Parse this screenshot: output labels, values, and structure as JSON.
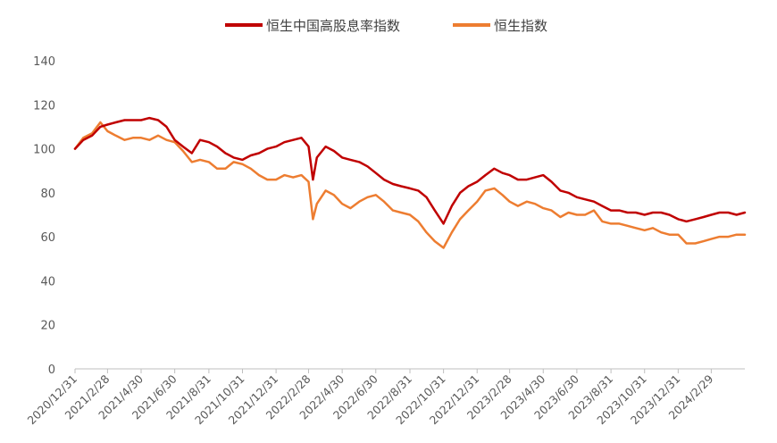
{
  "chart_data": {
    "type": "line",
    "title": "",
    "xlabel": "",
    "ylabel": "",
    "ylim": [
      0,
      140
    ],
    "yticks": [
      0,
      20,
      40,
      60,
      80,
      100,
      120,
      140
    ],
    "grid": false,
    "legend_position": "top",
    "x_tick_labels": [
      "2020/12/31",
      "2021/2/28",
      "2021/4/30",
      "2021/6/30",
      "2021/8/31",
      "2021/10/31",
      "2021/12/31",
      "2022/2/28",
      "2022/4/30",
      "2022/6/30",
      "2022/8/31",
      "2022/10/31",
      "2022/12/31",
      "2023/2/28",
      "2023/4/30",
      "2023/6/30",
      "2023/8/31",
      "2023/10/31",
      "2023/12/31",
      "2024/2/29"
    ],
    "series": [
      {
        "name": "恒生中国高股息率指数",
        "color": "#C00000",
        "points": [
          [
            "2020/12/31",
            100
          ],
          [
            "2021/1/15",
            104
          ],
          [
            "2021/1/31",
            106
          ],
          [
            "2021/2/15",
            110
          ],
          [
            "2021/2/28",
            111
          ],
          [
            "2021/3/15",
            112
          ],
          [
            "2021/3/31",
            113
          ],
          [
            "2021/4/15",
            113
          ],
          [
            "2021/4/30",
            113
          ],
          [
            "2021/5/15",
            114
          ],
          [
            "2021/5/31",
            113
          ],
          [
            "2021/6/15",
            110
          ],
          [
            "2021/6/30",
            104
          ],
          [
            "2021/7/15",
            101
          ],
          [
            "2021/7/31",
            98
          ],
          [
            "2021/8/15",
            104
          ],
          [
            "2021/8/31",
            103
          ],
          [
            "2021/9/15",
            101
          ],
          [
            "2021/9/30",
            98
          ],
          [
            "2021/10/15",
            96
          ],
          [
            "2021/10/31",
            95
          ],
          [
            "2021/11/15",
            97
          ],
          [
            "2021/11/30",
            98
          ],
          [
            "2021/12/15",
            100
          ],
          [
            "2021/12/31",
            101
          ],
          [
            "2022/1/15",
            103
          ],
          [
            "2022/1/31",
            104
          ],
          [
            "2022/2/15",
            105
          ],
          [
            "2022/2/28",
            101
          ],
          [
            "2022/3/8",
            86
          ],
          [
            "2022/3/15",
            96
          ],
          [
            "2022/3/31",
            101
          ],
          [
            "2022/4/15",
            99
          ],
          [
            "2022/4/30",
            96
          ],
          [
            "2022/5/15",
            95
          ],
          [
            "2022/5/31",
            94
          ],
          [
            "2022/6/15",
            92
          ],
          [
            "2022/6/30",
            89
          ],
          [
            "2022/7/15",
            86
          ],
          [
            "2022/7/31",
            84
          ],
          [
            "2022/8/15",
            83
          ],
          [
            "2022/8/31",
            82
          ],
          [
            "2022/9/15",
            81
          ],
          [
            "2022/9/30",
            78
          ],
          [
            "2022/10/15",
            72
          ],
          [
            "2022/10/31",
            66
          ],
          [
            "2022/11/15",
            74
          ],
          [
            "2022/11/30",
            80
          ],
          [
            "2022/12/15",
            83
          ],
          [
            "2022/12/31",
            85
          ],
          [
            "2023/1/15",
            88
          ],
          [
            "2023/1/31",
            91
          ],
          [
            "2023/2/15",
            89
          ],
          [
            "2023/2/28",
            88
          ],
          [
            "2023/3/15",
            86
          ],
          [
            "2023/3/31",
            86
          ],
          [
            "2023/4/15",
            87
          ],
          [
            "2023/4/30",
            88
          ],
          [
            "2023/5/15",
            85
          ],
          [
            "2023/5/31",
            81
          ],
          [
            "2023/6/15",
            80
          ],
          [
            "2023/6/30",
            78
          ],
          [
            "2023/7/15",
            77
          ],
          [
            "2023/7/31",
            76
          ],
          [
            "2023/8/15",
            74
          ],
          [
            "2023/8/31",
            72
          ],
          [
            "2023/9/15",
            72
          ],
          [
            "2023/9/30",
            71
          ],
          [
            "2023/10/15",
            71
          ],
          [
            "2023/10/31",
            70
          ],
          [
            "2023/11/15",
            71
          ],
          [
            "2023/11/30",
            71
          ],
          [
            "2023/12/15",
            70
          ],
          [
            "2023/12/31",
            68
          ],
          [
            "2024/1/15",
            67
          ],
          [
            "2024/1/31",
            68
          ],
          [
            "2024/2/15",
            69
          ],
          [
            "2024/2/29",
            70
          ],
          [
            "2024/3/15",
            71
          ],
          [
            "2024/3/31",
            71
          ],
          [
            "2024/4/15",
            70
          ],
          [
            "2024/4/30",
            71
          ]
        ]
      },
      {
        "name": "恒生指数",
        "color": "#ED7D31",
        "points": [
          [
            "2020/12/31",
            100
          ],
          [
            "2021/1/15",
            105
          ],
          [
            "2021/1/31",
            107
          ],
          [
            "2021/2/15",
            112
          ],
          [
            "2021/2/28",
            108
          ],
          [
            "2021/3/15",
            106
          ],
          [
            "2021/3/31",
            104
          ],
          [
            "2021/4/15",
            105
          ],
          [
            "2021/4/30",
            105
          ],
          [
            "2021/5/15",
            104
          ],
          [
            "2021/5/31",
            106
          ],
          [
            "2021/6/15",
            104
          ],
          [
            "2021/6/30",
            103
          ],
          [
            "2021/7/15",
            99
          ],
          [
            "2021/7/31",
            94
          ],
          [
            "2021/8/15",
            95
          ],
          [
            "2021/8/31",
            94
          ],
          [
            "2021/9/15",
            91
          ],
          [
            "2021/9/30",
            91
          ],
          [
            "2021/10/15",
            94
          ],
          [
            "2021/10/31",
            93
          ],
          [
            "2021/11/15",
            91
          ],
          [
            "2021/11/30",
            88
          ],
          [
            "2021/12/15",
            86
          ],
          [
            "2021/12/31",
            86
          ],
          [
            "2022/1/15",
            88
          ],
          [
            "2022/1/31",
            87
          ],
          [
            "2022/2/15",
            88
          ],
          [
            "2022/2/28",
            85
          ],
          [
            "2022/3/8",
            68
          ],
          [
            "2022/3/15",
            75
          ],
          [
            "2022/3/31",
            81
          ],
          [
            "2022/4/15",
            79
          ],
          [
            "2022/4/30",
            75
          ],
          [
            "2022/5/15",
            73
          ],
          [
            "2022/5/31",
            76
          ],
          [
            "2022/6/15",
            78
          ],
          [
            "2022/6/30",
            79
          ],
          [
            "2022/7/15",
            76
          ],
          [
            "2022/7/31",
            72
          ],
          [
            "2022/8/15",
            71
          ],
          [
            "2022/8/31",
            70
          ],
          [
            "2022/9/15",
            67
          ],
          [
            "2022/9/30",
            62
          ],
          [
            "2022/10/15",
            58
          ],
          [
            "2022/10/31",
            55
          ],
          [
            "2022/11/15",
            62
          ],
          [
            "2022/11/30",
            68
          ],
          [
            "2022/12/15",
            72
          ],
          [
            "2022/12/31",
            76
          ],
          [
            "2023/1/15",
            81
          ],
          [
            "2023/1/31",
            82
          ],
          [
            "2023/2/15",
            79
          ],
          [
            "2023/2/28",
            76
          ],
          [
            "2023/3/15",
            74
          ],
          [
            "2023/3/31",
            76
          ],
          [
            "2023/4/15",
            75
          ],
          [
            "2023/4/30",
            73
          ],
          [
            "2023/5/15",
            72
          ],
          [
            "2023/5/31",
            69
          ],
          [
            "2023/6/15",
            71
          ],
          [
            "2023/6/30",
            70
          ],
          [
            "2023/7/15",
            70
          ],
          [
            "2023/7/31",
            72
          ],
          [
            "2023/8/15",
            67
          ],
          [
            "2023/8/31",
            66
          ],
          [
            "2023/9/15",
            66
          ],
          [
            "2023/9/30",
            65
          ],
          [
            "2023/10/15",
            64
          ],
          [
            "2023/10/31",
            63
          ],
          [
            "2023/11/15",
            64
          ],
          [
            "2023/11/30",
            62
          ],
          [
            "2023/12/15",
            61
          ],
          [
            "2023/12/31",
            61
          ],
          [
            "2024/1/15",
            57
          ],
          [
            "2024/1/31",
            57
          ],
          [
            "2024/2/15",
            58
          ],
          [
            "2024/2/29",
            59
          ],
          [
            "2024/3/15",
            60
          ],
          [
            "2024/3/31",
            60
          ],
          [
            "2024/4/15",
            61
          ],
          [
            "2024/4/30",
            61
          ]
        ]
      }
    ]
  }
}
